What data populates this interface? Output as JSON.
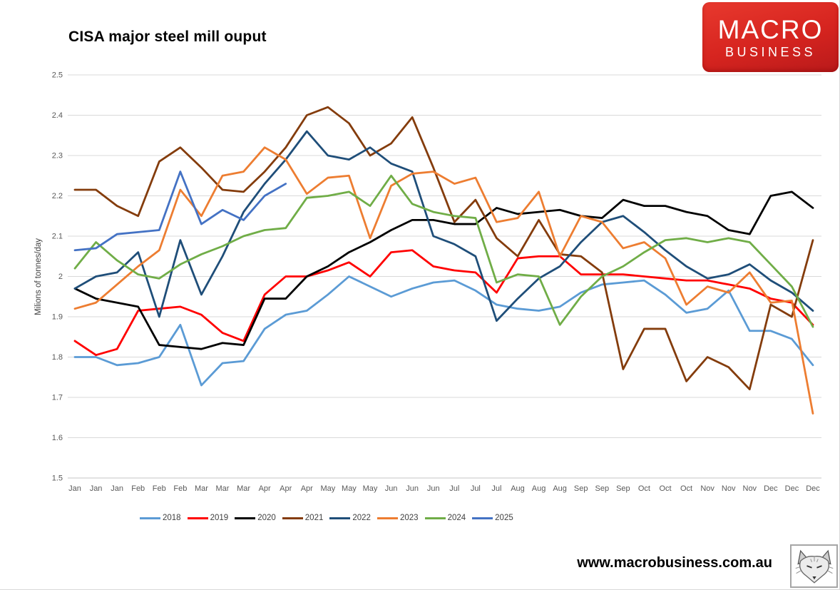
{
  "title": "CISA major steel mill ouput",
  "logo": {
    "line1": "MACRO",
    "line2": "BUSINESS",
    "bg_color_top": "#e8392e",
    "bg_color_bottom": "#b91a1b",
    "text_color": "#ffffff"
  },
  "footer": {
    "url": "www.macrobusiness.com.au",
    "fox_icon": "fox-sketch-logo"
  },
  "chart_data": {
    "type": "line",
    "title": "CISA major steel mill ouput",
    "xlabel": "",
    "ylabel": "Milions of tonnes/day",
    "ylim": [
      1.5,
      2.5
    ],
    "ytick_step": 0.1,
    "grid": true,
    "legend_position": "bottom",
    "gridline_color": "#d9d9d9",
    "tick_label_color": "#595959",
    "categories": [
      "Jan",
      "Jan",
      "Jan",
      "Feb",
      "Feb",
      "Feb",
      "Mar",
      "Mar",
      "Mar",
      "Apr",
      "Apr",
      "Apr",
      "May",
      "May",
      "May",
      "Jun",
      "Jun",
      "Jun",
      "Jul",
      "Jul",
      "Jul",
      "Aug",
      "Aug",
      "Aug",
      "Sep",
      "Sep",
      "Sep",
      "Oct",
      "Oct",
      "Oct",
      "Nov",
      "Nov",
      "Nov",
      "Dec",
      "Dec",
      "Dec"
    ],
    "series": [
      {
        "name": "2018",
        "color": "#5B9BD5",
        "values": [
          1.8,
          1.8,
          1.78,
          1.785,
          1.8,
          1.88,
          1.73,
          1.785,
          1.79,
          1.87,
          1.905,
          1.915,
          1.955,
          2.0,
          1.975,
          1.95,
          1.97,
          1.985,
          1.99,
          1.965,
          1.93,
          1.92,
          1.915,
          1.925,
          1.96,
          1.98,
          1.985,
          1.99,
          1.955,
          1.91,
          1.92,
          1.965,
          1.865,
          1.865,
          1.845,
          1.78
        ]
      },
      {
        "name": "2019",
        "color": "#FF0000",
        "values": [
          1.84,
          1.805,
          1.82,
          1.915,
          1.92,
          1.925,
          1.905,
          1.86,
          1.84,
          1.955,
          2.0,
          2.0,
          2.015,
          2.035,
          2.0,
          2.06,
          2.065,
          2.025,
          2.015,
          2.01,
          1.96,
          2.045,
          2.05,
          2.05,
          2.005,
          2.005,
          2.005,
          2.0,
          1.995,
          1.99,
          1.99,
          1.98,
          1.97,
          1.945,
          1.935,
          1.88
        ]
      },
      {
        "name": "2020",
        "color": "#000000",
        "values": [
          1.97,
          1.945,
          1.935,
          1.925,
          1.83,
          1.825,
          1.82,
          1.835,
          1.83,
          1.945,
          1.945,
          2.0,
          2.025,
          2.06,
          2.085,
          2.115,
          2.14,
          2.14,
          2.13,
          2.13,
          2.17,
          2.155,
          2.16,
          2.165,
          2.15,
          2.145,
          2.19,
          2.175,
          2.175,
          2.16,
          2.15,
          2.115,
          2.105,
          2.2,
          2.21,
          2.17
        ]
      },
      {
        "name": "2021",
        "color": "#843C0C",
        "values": [
          2.215,
          2.215,
          2.175,
          2.15,
          2.285,
          2.32,
          2.27,
          2.215,
          2.21,
          2.26,
          2.32,
          2.4,
          2.42,
          2.38,
          2.3,
          2.33,
          2.395,
          2.27,
          2.135,
          2.19,
          2.095,
          2.05,
          2.14,
          2.055,
          2.05,
          2.01,
          1.77,
          1.87,
          1.87,
          1.74,
          1.8,
          1.775,
          1.72,
          1.93,
          1.9,
          2.09
        ]
      },
      {
        "name": "2022",
        "color": "#1F4E79",
        "values": [
          1.97,
          2.0,
          2.01,
          2.06,
          1.9,
          2.09,
          1.955,
          2.05,
          2.16,
          2.23,
          2.29,
          2.36,
          2.3,
          2.29,
          2.32,
          2.28,
          2.26,
          2.1,
          2.08,
          2.05,
          1.89,
          1.945,
          1.995,
          2.025,
          2.085,
          2.135,
          2.15,
          2.11,
          2.065,
          2.025,
          1.995,
          2.005,
          2.03,
          1.99,
          1.96,
          1.915
        ]
      },
      {
        "name": "2023",
        "color": "#ED7D31",
        "values": [
          1.92,
          1.935,
          1.98,
          2.025,
          2.065,
          2.215,
          2.15,
          2.25,
          2.26,
          2.32,
          2.29,
          2.205,
          2.245,
          2.25,
          2.095,
          2.225,
          2.255,
          2.26,
          2.23,
          2.245,
          2.135,
          2.145,
          2.21,
          2.05,
          2.15,
          2.135,
          2.07,
          2.085,
          2.045,
          1.93,
          1.975,
          1.96,
          2.01,
          1.935,
          1.94,
          1.66
        ]
      },
      {
        "name": "2024",
        "color": "#70AD47",
        "values": [
          2.02,
          2.085,
          2.04,
          2.005,
          1.995,
          2.03,
          2.055,
          2.075,
          2.1,
          2.115,
          2.12,
          2.195,
          2.2,
          2.21,
          2.175,
          2.25,
          2.18,
          2.16,
          2.15,
          2.145,
          1.985,
          2.005,
          2.0,
          1.88,
          1.95,
          2.0,
          2.025,
          2.06,
          2.09,
          2.095,
          2.085,
          2.095,
          2.085,
          2.03,
          1.975,
          1.875
        ]
      },
      {
        "name": "2025",
        "color": "#4472C4",
        "values": [
          2.065,
          2.07,
          2.105,
          2.11,
          2.115,
          2.26,
          2.13,
          2.165,
          2.14,
          2.2,
          2.23
        ]
      }
    ]
  }
}
